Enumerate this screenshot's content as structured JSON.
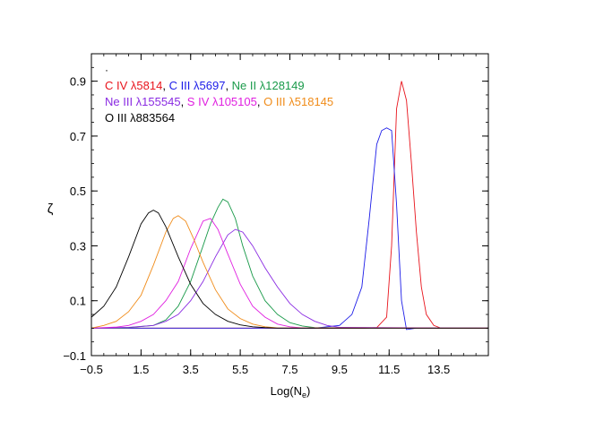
{
  "chart_data": {
    "type": "line",
    "xlabel": "Log(N",
    "xlabel_sub": "e",
    "xlabel_close": ")",
    "ylabel": "ζ",
    "xlim": [
      -0.5,
      15.5
    ],
    "ylim": [
      -0.1,
      1.0
    ],
    "xticks": [
      -0.5,
      1.5,
      3.5,
      5.5,
      7.5,
      9.5,
      11.5,
      13.5
    ],
    "xtick_labels": [
      "−0.5",
      "1.5",
      "3.5",
      "5.5",
      "7.5",
      "9.5",
      "11.5",
      "13.5"
    ],
    "yticks": [
      -0.1,
      0.1,
      0.3,
      0.5,
      0.7,
      0.9
    ],
    "ytick_labels": [
      "−0.1",
      "0.1",
      "0.3",
      "0.5",
      "0.7",
      "0.9"
    ],
    "grid": false,
    "legend_lines": [
      [
        {
          "text": "C IV λ5814",
          "color": "#e8141c"
        },
        {
          "text": ", ",
          "color": "#000000"
        },
        {
          "text": "C III λ5697",
          "color": "#1c1ce8"
        },
        {
          "text": ", ",
          "color": "#000000"
        },
        {
          "text": "Ne II λ128149",
          "color": "#1a9a4a"
        }
      ],
      [
        {
          "text": "Ne III λ155545",
          "color": "#8a2be2"
        },
        {
          "text": ", ",
          "color": "#000000"
        },
        {
          "text": "S IV λ105105",
          "color": "#e020e0"
        },
        {
          "text": ", ",
          "color": "#000000"
        },
        {
          "text": "O III λ518145",
          "color": "#f08c1a"
        }
      ],
      [
        {
          "text": "O III λ883564",
          "color": "#000000"
        }
      ]
    ],
    "series": [
      {
        "name": "C IV λ5814",
        "color": "#e8141c",
        "x": [
          -0.5,
          10.5,
          11.0,
          11.4,
          11.6,
          11.8,
          12.0,
          12.2,
          12.4,
          12.6,
          12.8,
          13.0,
          13.3,
          13.6,
          15.5
        ],
        "y": [
          0,
          0,
          0.002,
          0.04,
          0.3,
          0.8,
          0.9,
          0.83,
          0.6,
          0.35,
          0.15,
          0.05,
          0.01,
          0.0,
          0
        ]
      },
      {
        "name": "C III λ5697",
        "color": "#1c1ce8",
        "x": [
          -0.5,
          8.5,
          9.5,
          10.0,
          10.4,
          10.7,
          11.0,
          11.2,
          11.4,
          11.6,
          11.8,
          12.0,
          12.2,
          12.6,
          13.0,
          15.5
        ],
        "y": [
          0,
          0,
          0.01,
          0.05,
          0.15,
          0.4,
          0.67,
          0.72,
          0.73,
          0.72,
          0.45,
          0.1,
          -0.005,
          0.0,
          0,
          0
        ]
      },
      {
        "name": "Ne II λ128149",
        "color": "#1a9a4a",
        "x": [
          -0.5,
          1.0,
          2.0,
          2.5,
          3.0,
          3.5,
          4.0,
          4.3,
          4.6,
          4.8,
          5.0,
          5.3,
          5.6,
          6.0,
          6.5,
          7.0,
          7.5,
          8.0,
          8.5,
          15.5
        ],
        "y": [
          0,
          0.002,
          0.01,
          0.03,
          0.08,
          0.17,
          0.3,
          0.38,
          0.44,
          0.47,
          0.46,
          0.4,
          0.3,
          0.19,
          0.1,
          0.05,
          0.02,
          0.008,
          0.002,
          0
        ]
      },
      {
        "name": "Ne III λ155545",
        "color": "#8a2be2",
        "x": [
          -0.5,
          1.0,
          2.0,
          2.5,
          3.0,
          3.5,
          4.0,
          4.5,
          5.0,
          5.3,
          5.6,
          6.0,
          6.5,
          7.0,
          7.5,
          8.0,
          8.5,
          9.0,
          9.5,
          15.5
        ],
        "y": [
          0,
          0.003,
          0.01,
          0.025,
          0.05,
          0.1,
          0.17,
          0.26,
          0.34,
          0.36,
          0.35,
          0.3,
          0.22,
          0.15,
          0.09,
          0.05,
          0.025,
          0.01,
          0.003,
          0
        ]
      },
      {
        "name": "S IV λ105105",
        "color": "#e020e0",
        "x": [
          -0.5,
          0.5,
          1.0,
          1.5,
          2.0,
          2.5,
          3.0,
          3.5,
          4.0,
          4.3,
          4.6,
          5.0,
          5.5,
          6.0,
          6.5,
          7.0,
          7.5,
          8.0,
          15.5
        ],
        "y": [
          0,
          0.004,
          0.01,
          0.025,
          0.05,
          0.1,
          0.17,
          0.29,
          0.39,
          0.4,
          0.36,
          0.27,
          0.16,
          0.08,
          0.04,
          0.015,
          0.005,
          0.001,
          0
        ]
      },
      {
        "name": "O III λ518145",
        "color": "#f08c1a",
        "x": [
          -0.5,
          0.0,
          0.5,
          1.0,
          1.5,
          2.0,
          2.5,
          2.8,
          3.0,
          3.3,
          3.6,
          4.0,
          4.5,
          5.0,
          5.5,
          6.0,
          6.5,
          7.0,
          15.5
        ],
        "y": [
          0,
          0.01,
          0.025,
          0.06,
          0.12,
          0.23,
          0.35,
          0.4,
          0.41,
          0.39,
          0.33,
          0.24,
          0.14,
          0.07,
          0.035,
          0.015,
          0.005,
          0.001,
          0
        ]
      },
      {
        "name": "O III λ883564",
        "color": "#000000",
        "x": [
          -0.5,
          0.0,
          0.5,
          1.0,
          1.5,
          1.8,
          2.0,
          2.2,
          2.5,
          3.0,
          3.5,
          4.0,
          4.5,
          5.0,
          5.5,
          6.0,
          6.5,
          7.0,
          15.5
        ],
        "y": [
          0.04,
          0.08,
          0.15,
          0.26,
          0.38,
          0.42,
          0.43,
          0.42,
          0.37,
          0.26,
          0.16,
          0.09,
          0.05,
          0.025,
          0.012,
          0.005,
          0.002,
          0.0,
          0
        ]
      }
    ]
  }
}
